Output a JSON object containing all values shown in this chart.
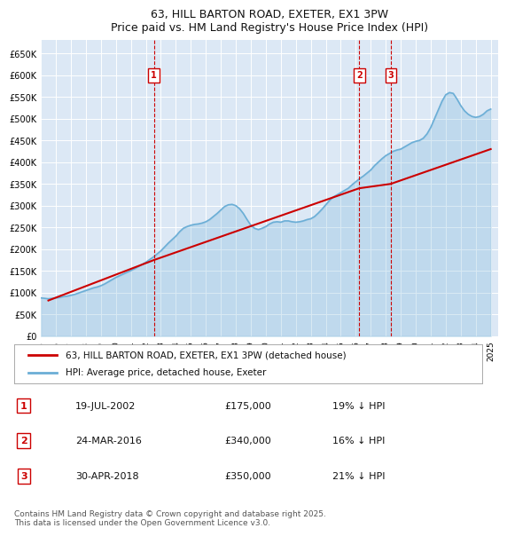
{
  "title": "63, HILL BARTON ROAD, EXETER, EX1 3PW",
  "subtitle": "Price paid vs. HM Land Registry's House Price Index (HPI)",
  "bg_color": "#dce8f5",
  "plot_bg_color": "#dce8f5",
  "y_ticks": [
    0,
    50000,
    100000,
    150000,
    200000,
    250000,
    300000,
    350000,
    400000,
    450000,
    500000,
    550000,
    600000,
    650000
  ],
  "y_tick_labels": [
    "£0",
    "£50K",
    "£100K",
    "£150K",
    "£200K",
    "£250K",
    "£300K",
    "£350K",
    "£400K",
    "£450K",
    "£500K",
    "£550K",
    "£600K",
    "£650K"
  ],
  "ylim": [
    0,
    680000
  ],
  "xlim_start": 1995.0,
  "xlim_end": 2025.5,
  "hpi_line_color": "#6baed6",
  "price_line_color": "#cc0000",
  "vline_color": "#cc0000",
  "marker_bg": "#ffffff",
  "marker_border": "#cc0000",
  "legend_label_price": "63, HILL BARTON ROAD, EXETER, EX1 3PW (detached house)",
  "legend_label_hpi": "HPI: Average price, detached house, Exeter",
  "transactions": [
    {
      "id": 1,
      "date": "19-JUL-2002",
      "price": 175000,
      "pct": "19%",
      "direction": "↓",
      "year": 2002.54
    },
    {
      "id": 2,
      "date": "24-MAR-2016",
      "price": 340000,
      "pct": "16%",
      "direction": "↓",
      "year": 2016.23
    },
    {
      "id": 3,
      "date": "30-APR-2018",
      "price": 350000,
      "pct": "21%",
      "direction": "↓",
      "year": 2018.33
    }
  ],
  "footer": "Contains HM Land Registry data © Crown copyright and database right 2025.\nThis data is licensed under the Open Government Licence v3.0.",
  "hpi_data_x": [
    1995.0,
    1995.25,
    1995.5,
    1995.75,
    1996.0,
    1996.25,
    1996.5,
    1996.75,
    1997.0,
    1997.25,
    1997.5,
    1997.75,
    1998.0,
    1998.25,
    1998.5,
    1998.75,
    1999.0,
    1999.25,
    1999.5,
    1999.75,
    2000.0,
    2000.25,
    2000.5,
    2000.75,
    2001.0,
    2001.25,
    2001.5,
    2001.75,
    2002.0,
    2002.25,
    2002.5,
    2002.75,
    2003.0,
    2003.25,
    2003.5,
    2003.75,
    2004.0,
    2004.25,
    2004.5,
    2004.75,
    2005.0,
    2005.25,
    2005.5,
    2005.75,
    2006.0,
    2006.25,
    2006.5,
    2006.75,
    2007.0,
    2007.25,
    2007.5,
    2007.75,
    2008.0,
    2008.25,
    2008.5,
    2008.75,
    2009.0,
    2009.25,
    2009.5,
    2009.75,
    2010.0,
    2010.25,
    2010.5,
    2010.75,
    2011.0,
    2011.25,
    2011.5,
    2011.75,
    2012.0,
    2012.25,
    2012.5,
    2012.75,
    2013.0,
    2013.25,
    2013.5,
    2013.75,
    2014.0,
    2014.25,
    2014.5,
    2014.75,
    2015.0,
    2015.25,
    2015.5,
    2015.75,
    2016.0,
    2016.25,
    2016.5,
    2016.75,
    2017.0,
    2017.25,
    2017.5,
    2017.75,
    2018.0,
    2018.25,
    2018.5,
    2018.75,
    2019.0,
    2019.25,
    2019.5,
    2019.75,
    2020.0,
    2020.25,
    2020.5,
    2020.75,
    2021.0,
    2021.25,
    2021.5,
    2021.75,
    2022.0,
    2022.25,
    2022.5,
    2022.75,
    2023.0,
    2023.25,
    2023.5,
    2023.75,
    2024.0,
    2024.25,
    2024.5,
    2024.75,
    2025.0
  ],
  "hpi_data_y": [
    88000,
    87000,
    86000,
    87000,
    88000,
    89000,
    91000,
    92000,
    94000,
    96000,
    99000,
    102000,
    105000,
    108000,
    111000,
    113000,
    116000,
    120000,
    125000,
    130000,
    135000,
    139000,
    143000,
    147000,
    151000,
    155000,
    160000,
    165000,
    170000,
    176000,
    182000,
    189000,
    196000,
    205000,
    214000,
    222000,
    230000,
    240000,
    248000,
    252000,
    255000,
    257000,
    258000,
    260000,
    263000,
    268000,
    275000,
    282000,
    290000,
    298000,
    302000,
    303000,
    300000,
    293000,
    282000,
    268000,
    255000,
    248000,
    245000,
    248000,
    252000,
    258000,
    262000,
    263000,
    262000,
    265000,
    265000,
    263000,
    262000,
    263000,
    265000,
    268000,
    270000,
    275000,
    283000,
    292000,
    302000,
    312000,
    320000,
    325000,
    330000,
    335000,
    340000,
    348000,
    355000,
    362000,
    368000,
    375000,
    382000,
    392000,
    400000,
    408000,
    415000,
    420000,
    425000,
    428000,
    430000,
    435000,
    440000,
    445000,
    448000,
    450000,
    455000,
    465000,
    480000,
    500000,
    520000,
    540000,
    555000,
    560000,
    558000,
    545000,
    530000,
    518000,
    510000,
    505000,
    503000,
    505000,
    510000,
    518000,
    522000
  ],
  "price_data_x": [
    1995.5,
    2002.54,
    2016.23,
    2018.33,
    2025.0
  ],
  "price_data_y": [
    82000,
    175000,
    340000,
    350000,
    430000
  ]
}
